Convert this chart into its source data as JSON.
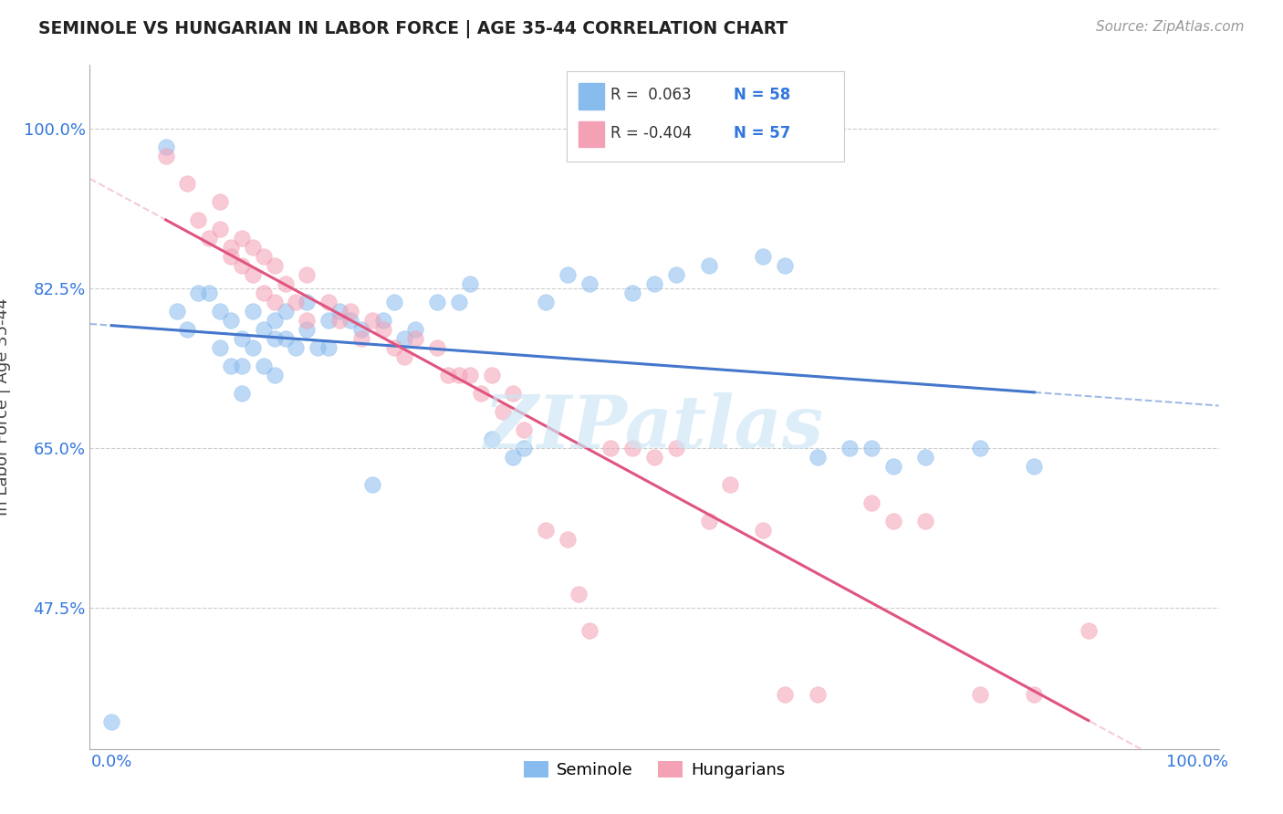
{
  "title": "SEMINOLE VS HUNGARIAN IN LABOR FORCE | AGE 35-44 CORRELATION CHART",
  "source": "Source: ZipAtlas.com",
  "ylabel": "In Labor Force | Age 35-44",
  "xlim": [
    -0.02,
    1.02
  ],
  "ylim": [
    0.32,
    1.07
  ],
  "xtick_labels": [
    "0.0%",
    "100.0%"
  ],
  "xtick_vals": [
    0.0,
    1.0
  ],
  "ytick_labels": [
    "47.5%",
    "65.0%",
    "82.5%",
    "100.0%"
  ],
  "ytick_vals": [
    0.475,
    0.65,
    0.825,
    1.0
  ],
  "seminole_color": "#88bbee",
  "hungarian_color": "#f4a0b5",
  "seminole_line_color": "#4477cc",
  "hungarian_line_color": "#e05580",
  "watermark": "ZIPatlas",
  "seminole_x": [
    0.0,
    0.05,
    0.06,
    0.07,
    0.08,
    0.09,
    0.1,
    0.1,
    0.11,
    0.11,
    0.12,
    0.12,
    0.12,
    0.13,
    0.13,
    0.14,
    0.14,
    0.15,
    0.15,
    0.15,
    0.16,
    0.16,
    0.17,
    0.18,
    0.18,
    0.19,
    0.2,
    0.2,
    0.21,
    0.22,
    0.23,
    0.24,
    0.25,
    0.26,
    0.27,
    0.28,
    0.3,
    0.32,
    0.33,
    0.35,
    0.37,
    0.38,
    0.4,
    0.42,
    0.44,
    0.48,
    0.5,
    0.52,
    0.55,
    0.6,
    0.62,
    0.65,
    0.68,
    0.7,
    0.72,
    0.75,
    0.8,
    0.85
  ],
  "seminole_y": [
    0.35,
    0.98,
    0.8,
    0.78,
    0.82,
    0.82,
    0.8,
    0.76,
    0.79,
    0.74,
    0.77,
    0.74,
    0.71,
    0.8,
    0.76,
    0.78,
    0.74,
    0.79,
    0.77,
    0.73,
    0.8,
    0.77,
    0.76,
    0.81,
    0.78,
    0.76,
    0.79,
    0.76,
    0.8,
    0.79,
    0.78,
    0.61,
    0.79,
    0.81,
    0.77,
    0.78,
    0.81,
    0.81,
    0.83,
    0.66,
    0.64,
    0.65,
    0.81,
    0.84,
    0.83,
    0.82,
    0.83,
    0.84,
    0.85,
    0.86,
    0.85,
    0.64,
    0.65,
    0.65,
    0.63,
    0.64,
    0.65,
    0.63
  ],
  "hungarian_x": [
    0.05,
    0.07,
    0.08,
    0.09,
    0.1,
    0.1,
    0.11,
    0.11,
    0.12,
    0.12,
    0.13,
    0.13,
    0.14,
    0.14,
    0.15,
    0.15,
    0.16,
    0.17,
    0.18,
    0.18,
    0.2,
    0.21,
    0.22,
    0.23,
    0.24,
    0.25,
    0.26,
    0.27,
    0.28,
    0.3,
    0.31,
    0.32,
    0.33,
    0.34,
    0.35,
    0.36,
    0.37,
    0.38,
    0.4,
    0.42,
    0.43,
    0.44,
    0.46,
    0.48,
    0.5,
    0.52,
    0.55,
    0.57,
    0.6,
    0.62,
    0.65,
    0.7,
    0.72,
    0.75,
    0.8,
    0.85,
    0.9
  ],
  "hungarian_y": [
    0.97,
    0.94,
    0.9,
    0.88,
    0.92,
    0.89,
    0.87,
    0.86,
    0.88,
    0.85,
    0.87,
    0.84,
    0.86,
    0.82,
    0.85,
    0.81,
    0.83,
    0.81,
    0.84,
    0.79,
    0.81,
    0.79,
    0.8,
    0.77,
    0.79,
    0.78,
    0.76,
    0.75,
    0.77,
    0.76,
    0.73,
    0.73,
    0.73,
    0.71,
    0.73,
    0.69,
    0.71,
    0.67,
    0.56,
    0.55,
    0.49,
    0.45,
    0.65,
    0.65,
    0.64,
    0.65,
    0.57,
    0.61,
    0.56,
    0.38,
    0.38,
    0.59,
    0.57,
    0.57,
    0.38,
    0.38,
    0.45
  ]
}
